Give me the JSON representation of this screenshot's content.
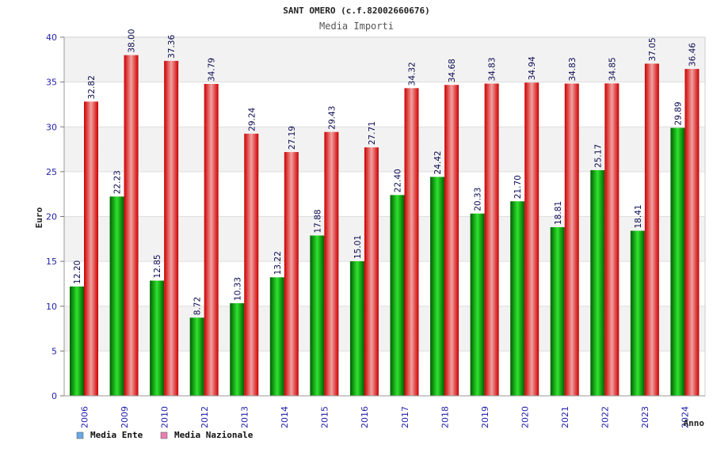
{
  "chart_data": {
    "type": "bar",
    "title": "SANT OMERO (c.f.82002660676)",
    "subtitle": "Media Importi",
    "xlabel": "Anno",
    "ylabel": "Euro",
    "ylim": [
      0,
      40
    ],
    "yticks": [
      "0",
      "5",
      "10",
      "15",
      "20",
      "25",
      "30",
      "35",
      "40"
    ],
    "grid": true,
    "legend_position": "bottom-left",
    "categories": [
      "2006",
      "2009",
      "2010",
      "2012",
      "2013",
      "2014",
      "2015",
      "2016",
      "2017",
      "2018",
      "2019",
      "2020",
      "2021",
      "2022",
      "2023",
      "2024"
    ],
    "series": [
      {
        "name": "Media Ente",
        "color": "#00b000",
        "legend_color": "#6aa8e8",
        "values": [
          12.2,
          22.23,
          12.85,
          8.72,
          10.33,
          13.22,
          17.88,
          15.01,
          22.4,
          24.42,
          20.33,
          21.7,
          18.81,
          25.17,
          18.41,
          29.89
        ],
        "labels": [
          "12.20",
          "22.23",
          "12.85",
          "8.72",
          "10.33",
          "13.22",
          "17.88",
          "15.01",
          "22.40",
          "24.42",
          "20.33",
          "21.70",
          "18.81",
          "25.17",
          "18.41",
          "29.89"
        ]
      },
      {
        "name": "Media Nazionale",
        "color": "#ee0000",
        "legend_color": "#e67fae",
        "values": [
          32.82,
          38.0,
          37.36,
          34.79,
          29.24,
          27.19,
          29.43,
          27.71,
          34.32,
          34.68,
          34.83,
          34.94,
          34.83,
          34.85,
          37.05,
          36.46
        ],
        "labels": [
          "32.82",
          "38.00",
          "37.36",
          "34.79",
          "29.24",
          "27.19",
          "29.43",
          "27.71",
          "34.32",
          "34.68",
          "34.83",
          "34.94",
          "34.83",
          "34.85",
          "37.05",
          "36.46"
        ]
      }
    ]
  }
}
